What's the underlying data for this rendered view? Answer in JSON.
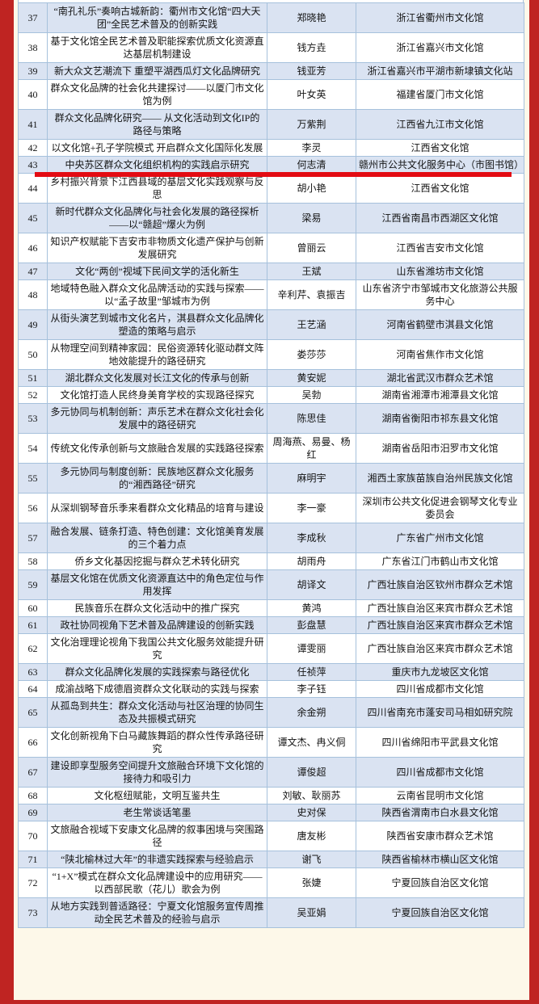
{
  "page": {
    "frame_color": "#bf2422",
    "paper_color": "#fdf8e9",
    "row_alt_color": "#dae3f2",
    "grid_color": "#a6c1dc",
    "underline_color": "#e30b13"
  },
  "table": {
    "highlight_row": "43",
    "rows": [
      {
        "no": "37",
        "title": "“南孔礼乐”奏响古城新韵：衢州市文化馆“四大天团”全民艺术普及的创新实践",
        "author": "郑晓艳",
        "org": "浙江省衢州市文化馆"
      },
      {
        "no": "38",
        "title": "基于文化馆全民艺术普及职能探索优质文化资源直达基层机制建设",
        "author": "钱方垚",
        "org": "浙江省嘉兴市文化馆"
      },
      {
        "no": "39",
        "title": "新大众文艺潮流下 重塑平湖西瓜灯文化品牌研究",
        "author": "钱亚芳",
        "org": "浙江省嘉兴市平湖市新埭镇文化站"
      },
      {
        "no": "40",
        "title": "群众文化品牌的社会化共建探讨——以厦门市文化馆为例",
        "author": "叶女英",
        "org": "福建省厦门市文化馆"
      },
      {
        "no": "41",
        "title": "群众文化品牌化研究—— 从文化活动到文化IP的路径与策略",
        "author": "万紫荆",
        "org": "江西省九江市文化馆"
      },
      {
        "no": "42",
        "title": "以文化馆+孔子学院模式 开启群众文化国际化发展",
        "author": "李灵",
        "org": "江西省文化馆"
      },
      {
        "no": "43",
        "title": "中央苏区群众文化组织机构的实践启示研究",
        "author": "何志清",
        "org": "赣州市公共文化服务中心（市图书馆）"
      },
      {
        "no": "44",
        "title": "乡村振兴背景下江西县域的基层文化实践观察与反思",
        "author": "胡小艳",
        "org": "江西省文化馆"
      },
      {
        "no": "45",
        "title": "新时代群众文化品牌化与社会化发展的路径探析——以“赣超”爆火为例",
        "author": "梁易",
        "org": "江西省南昌市西湖区文化馆"
      },
      {
        "no": "46",
        "title": "知识产权赋能下吉安市非物质文化遗产保护与创新发展研究",
        "author": "曾丽云",
        "org": "江西省吉安市文化馆"
      },
      {
        "no": "47",
        "title": "文化“两创”视域下民间文学的活化新生",
        "author": "王斌",
        "org": "山东省潍坊市文化馆"
      },
      {
        "no": "48",
        "title": "地域特色融入群众文化品牌活动的实践与探索——以“孟子故里”邹城市为例",
        "author": "辛利芹、袁振吉",
        "org": "山东省济宁市邹城市文化旅游公共服务中心"
      },
      {
        "no": "49",
        "title": "从街头演艺到城市文化名片，淇县群众文化品牌化塑造的策略与启示",
        "author": "王艺涵",
        "org": "河南省鹤壁市淇县文化馆"
      },
      {
        "no": "50",
        "title": "从物理空间到精神家园：民俗资源转化驱动群文阵地效能提升的路径研究",
        "author": "娄莎莎",
        "org": "河南省焦作市文化馆"
      },
      {
        "no": "51",
        "title": "湖北群众文化发展对长江文化的传承与创新",
        "author": "黄安妮",
        "org": "湖北省武汉市群众艺术馆"
      },
      {
        "no": "52",
        "title": "文化馆打造人民终身美育学校的实现路径探究",
        "author": "吴勃",
        "org": "湖南省湘潭市湘潭县文化馆"
      },
      {
        "no": "53",
        "title": "多元协同与机制创新：声乐艺术在群众文化社会化发展中的路径研究",
        "author": "陈思佳",
        "org": "湖南省衡阳市祁东县文化馆"
      },
      {
        "no": "54",
        "title": "传统文化传承创新与文旅融合发展的实践路径探索",
        "author": "周海燕、易曼、杨红",
        "org": "湖南省岳阳市汨罗市文化馆"
      },
      {
        "no": "55",
        "title": "多元协同与制度创新：民族地区群众文化服务的“湘西路径”研究",
        "author": "麻明宇",
        "org": "湘西土家族苗族自治州民族文化馆"
      },
      {
        "no": "56",
        "title": "从深圳钢琴音乐季来看群众文化精品的培育与建设",
        "author": "李一豪",
        "org": "深圳市公共文化促进会钢琴文化专业委员会"
      },
      {
        "no": "57",
        "title": "融合发展、链条打造、特色创建：文化馆美育发展的三个着力点",
        "author": "李成秋",
        "org": "广东省广州市文化馆"
      },
      {
        "no": "58",
        "title": "侨乡文化基因挖掘与群众艺术转化研究",
        "author": "胡雨舟",
        "org": "广东省江门市鹤山市文化馆"
      },
      {
        "no": "59",
        "title": "基层文化馆在优质文化资源直达中的角色定位与作用发挥",
        "author": "胡译文",
        "org": "广西壮族自治区钦州市群众艺术馆"
      },
      {
        "no": "60",
        "title": "民族音乐在群众文化活动中的推广探究",
        "author": "黄鸿",
        "org": "广西壮族自治区来宾市群众艺术馆"
      },
      {
        "no": "61",
        "title": "政社协同视角下艺术普及品牌建设的创新实践",
        "author": "彭盘慧",
        "org": "广西壮族自治区来宾市群众艺术馆"
      },
      {
        "no": "62",
        "title": "文化治理理论视角下我国公共文化服务效能提升研究",
        "author": "谭雯丽",
        "org": "广西壮族自治区来宾市群众艺术馆"
      },
      {
        "no": "63",
        "title": "群众文化品牌化发展的实践探索与路径优化",
        "author": "任祯萍",
        "org": "重庆市九龙坡区文化馆"
      },
      {
        "no": "64",
        "title": "成渝战略下成德眉资群众文化联动的实践与探索",
        "author": "李子钰",
        "org": "四川省成都市文化馆"
      },
      {
        "no": "65",
        "title": "从孤岛到共生：群众文化活动与社区治理的协同生态及共振模式研究",
        "author": "余金朔",
        "org": "四川省南充市蓬安司马相如研究院"
      },
      {
        "no": "66",
        "title": "文化创新视角下白马藏族舞蹈的群众性传承路径研究",
        "author": "谭文杰、冉义侗",
        "org": "四川省绵阳市平武县文化馆"
      },
      {
        "no": "67",
        "title": "建设即享型服务空间提升文旅融合环境下文化馆的接待力和吸引力",
        "author": "谭俊超",
        "org": "四川省成都市文化馆"
      },
      {
        "no": "68",
        "title": "文化枢纽赋能，文明互鉴共生",
        "author": "刘敏、耿丽苏",
        "org": "云南省昆明市文化馆"
      },
      {
        "no": "69",
        "title": "老生常谈话笔墨",
        "author": "史对保",
        "org": "陕西省渭南市白水县文化馆"
      },
      {
        "no": "70",
        "title": "文旅融合视域下安康文化品牌的叙事困境与突围路径",
        "author": "唐友彬",
        "org": "陕西省安康市群众艺术馆"
      },
      {
        "no": "71",
        "title": "“陕北榆林过大年”的非遗实践探索与经验启示",
        "author": "谢飞",
        "org": "陕西省榆林市横山区文化馆"
      },
      {
        "no": "72",
        "title": "“1+X”模式在群众文化品牌建设中的应用研究——以西部民歌（花儿）歌会为例",
        "author": "张婕",
        "org": "宁夏回族自治区文化馆"
      },
      {
        "no": "73",
        "title": "从地方实践到普适路径：宁夏文化馆服务宣传周推动全民艺术普及的经验与启示",
        "author": "吴亚娟",
        "org": "宁夏回族自治区文化馆"
      }
    ]
  }
}
